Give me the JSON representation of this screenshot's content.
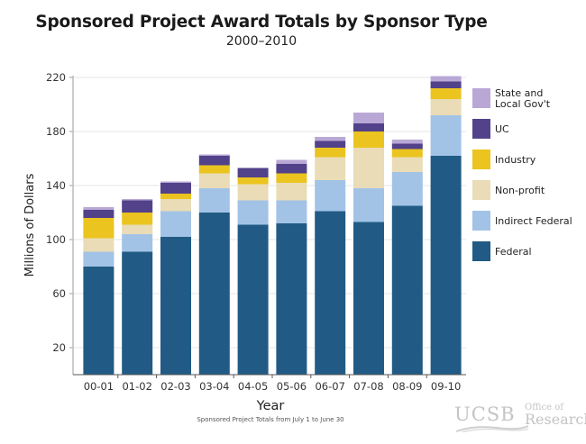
{
  "chart_data": {
    "type": "bar",
    "stacked": true,
    "title": "Sponsored Project Award Totals by Sponsor Type",
    "subtitle": "2000–2010",
    "xlabel": "Year",
    "ylabel": "Millions of Dollars",
    "note": "Sponsored Project Totals from July 1 to June 30",
    "ylim": [
      0,
      220
    ],
    "yticks": [
      20,
      60,
      100,
      140,
      180,
      220
    ],
    "grid": true,
    "legend_position": "right",
    "categories": [
      "00-01",
      "01-02",
      "02-03",
      "03-04",
      "04-05",
      "05-06",
      "06-07",
      "07-08",
      "08-09",
      "09-10"
    ],
    "series": [
      {
        "name": "Federal",
        "color": "#215b85",
        "values": [
          80,
          91,
          102,
          120,
          111,
          112,
          121,
          113,
          125,
          162
        ]
      },
      {
        "name": "Indirect Federal",
        "color": "#a2c3e6",
        "values": [
          11,
          13,
          19,
          18,
          18,
          17,
          23,
          25,
          25,
          30
        ]
      },
      {
        "name": "Non-profit",
        "color": "#e9dcb6",
        "values": [
          10,
          7,
          9,
          11,
          12,
          13,
          17,
          30,
          11,
          12
        ]
      },
      {
        "name": "Industry",
        "color": "#ebc41f",
        "values": [
          15,
          9,
          4,
          6,
          5,
          7,
          7,
          12,
          6,
          8
        ]
      },
      {
        "name": "UC",
        "color": "#52428a",
        "values": [
          6,
          9,
          8,
          7,
          7,
          7,
          5,
          6,
          4,
          5
        ]
      },
      {
        "name": "State and Local Gov't",
        "color": "#b9a8d6",
        "values": [
          2,
          1,
          1,
          1,
          0,
          3,
          3,
          8,
          3,
          4
        ]
      }
    ],
    "legend_order": [
      "State and Local Gov't",
      "UC",
      "Industry",
      "Non-profit",
      "Indirect Federal",
      "Federal"
    ]
  },
  "branding": {
    "logo_main": "UCSB",
    "logo_line1": "Office of",
    "logo_line2": "Research"
  }
}
